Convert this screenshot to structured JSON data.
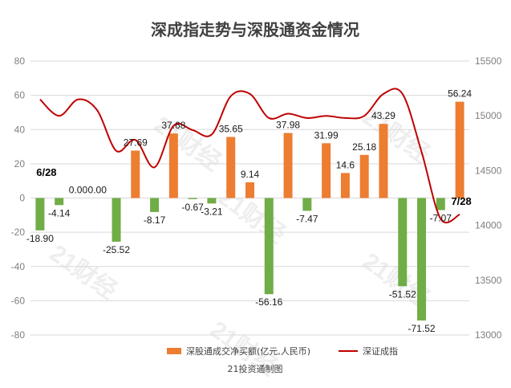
{
  "chart_data": {
    "type": "bar+line",
    "title": "深成指走势与深股通资金情况",
    "credit": "21投资通制图",
    "watermark": "21财经",
    "left_axis": {
      "ylim": [
        -80,
        80
      ],
      "ticks": [
        "80",
        "60",
        "40",
        "20",
        "0",
        "-20",
        "-40",
        "-60",
        "-80"
      ]
    },
    "right_axis": {
      "ylim": [
        13000,
        15500
      ],
      "ticks": [
        "15500",
        "15000",
        "14500",
        "14000",
        "13500",
        "13000"
      ]
    },
    "series": [
      {
        "name": "深股通成交净买额(亿元,人民币)",
        "type": "bar",
        "color_positive": "#ED7D31",
        "color_negative": "#70AD47",
        "values": [
          -18.9,
          -4.14,
          0.0,
          0.0,
          -25.52,
          27.69,
          -8.17,
          37.68,
          -0.67,
          -3.21,
          35.65,
          9.14,
          -56.16,
          37.98,
          -7.47,
          31.99,
          14.6,
          25.18,
          43.29,
          -51.52,
          -71.52,
          -7.07,
          56.24
        ],
        "labels": [
          "-18.90",
          "-4.14",
          "0.00",
          "0.00",
          "-25.52",
          "27.69",
          "-8.17",
          "37.68",
          "-0.67",
          "-3.21",
          "35.65",
          "9.14",
          "-56.16",
          "37.98",
          "-7.47",
          "31.99",
          "14.6",
          "25.18",
          "43.29",
          "-51.52",
          "-71.52",
          "-7.07",
          "56.24"
        ]
      },
      {
        "name": "深证成指",
        "type": "line",
        "color": "#C00000",
        "x": [
          0,
          1,
          2,
          3,
          4,
          5,
          6,
          7,
          8,
          9,
          10,
          11,
          12,
          13,
          14,
          15,
          16,
          17,
          18,
          19,
          20,
          21,
          22
        ],
        "values": [
          15150,
          15000,
          15150,
          15050,
          14680,
          14780,
          14530,
          14910,
          14870,
          14830,
          15180,
          15200,
          14980,
          15020,
          14980,
          15000,
          14980,
          15000,
          15200,
          15200,
          14670,
          14060,
          14100
        ]
      }
    ],
    "annotations": [
      {
        "text": "6/28",
        "index": 0
      },
      {
        "text": "7/28",
        "index": 22
      }
    ]
  }
}
